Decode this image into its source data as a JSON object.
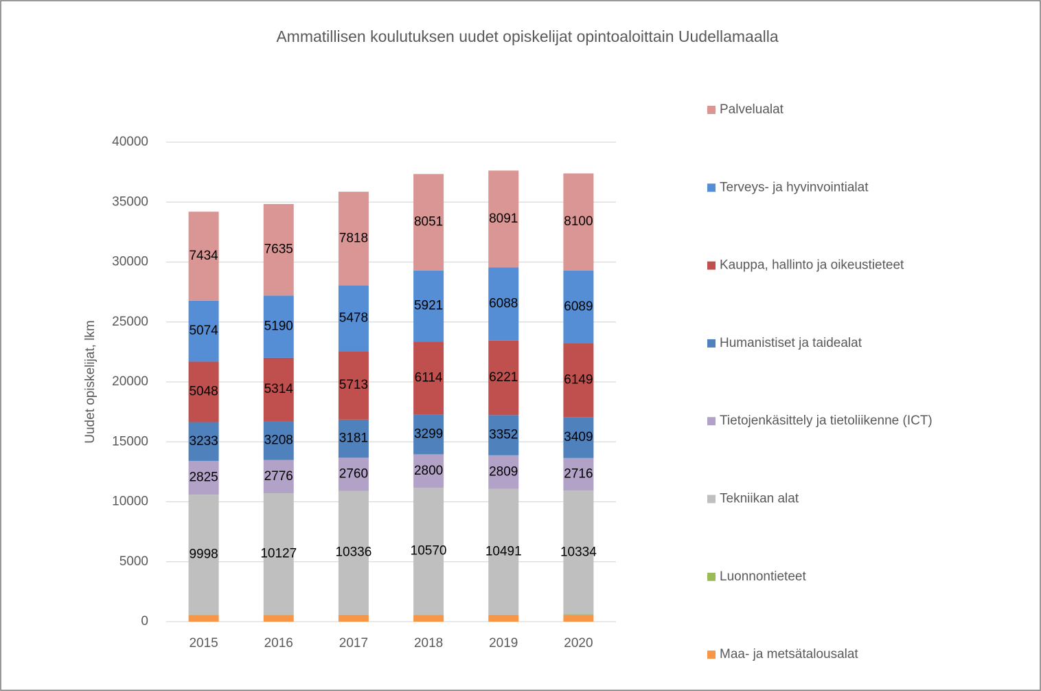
{
  "chart_data": {
    "type": "stacked_bar",
    "title": "Ammatillisen koulutuksen uudet opiskelijat opintoaloittain Uudellamaalla",
    "y_label": "Uudet opiskelijat, lkm",
    "categories": [
      "2015",
      "2016",
      "2017",
      "2018",
      "2019",
      "2020"
    ],
    "ylim": [
      0,
      40000
    ],
    "yticks": [
      0,
      5000,
      10000,
      15000,
      20000,
      25000,
      30000,
      35000,
      40000
    ],
    "grid": true,
    "legend": "right",
    "series": [
      {
        "name": "Maa- ja metsätalousalat",
        "color": "#f79646",
        "values": [
          560,
          560,
          550,
          560,
          550,
          570
        ],
        "data_labels": false
      },
      {
        "name": "Luonnontieteet",
        "color": "#9bbb59",
        "values": [
          30,
          30,
          30,
          30,
          30,
          30
        ],
        "data_labels": false
      },
      {
        "name": "Tekniikan alat",
        "color": "#bfbfbf",
        "values": [
          9998,
          10127,
          10336,
          10570,
          10491,
          10334
        ],
        "data_labels": true
      },
      {
        "name": "Tietojenkäsittely ja tietoliikenne (ICT)",
        "color": "#b3a2c7",
        "values": [
          2825,
          2776,
          2760,
          2800,
          2809,
          2716
        ],
        "data_labels": true
      },
      {
        "name": "Humanistiset ja taidealat",
        "color": "#4f81bd",
        "values": [
          3233,
          3208,
          3181,
          3299,
          3352,
          3409
        ],
        "data_labels": true
      },
      {
        "name": "Kauppa, hallinto ja oikeustieteet",
        "color": "#c0504d",
        "values": [
          5048,
          5314,
          5713,
          6114,
          6221,
          6149
        ],
        "data_labels": true
      },
      {
        "name": "Terveys- ja hyvinvointialat",
        "color": "#558ed5",
        "values": [
          5074,
          5190,
          5478,
          5921,
          6088,
          6089
        ],
        "data_labels": true
      },
      {
        "name": "Palvelualat",
        "color": "#d99694",
        "values": [
          7434,
          7635,
          7818,
          8051,
          8091,
          8100
        ],
        "data_labels": true
      }
    ]
  }
}
